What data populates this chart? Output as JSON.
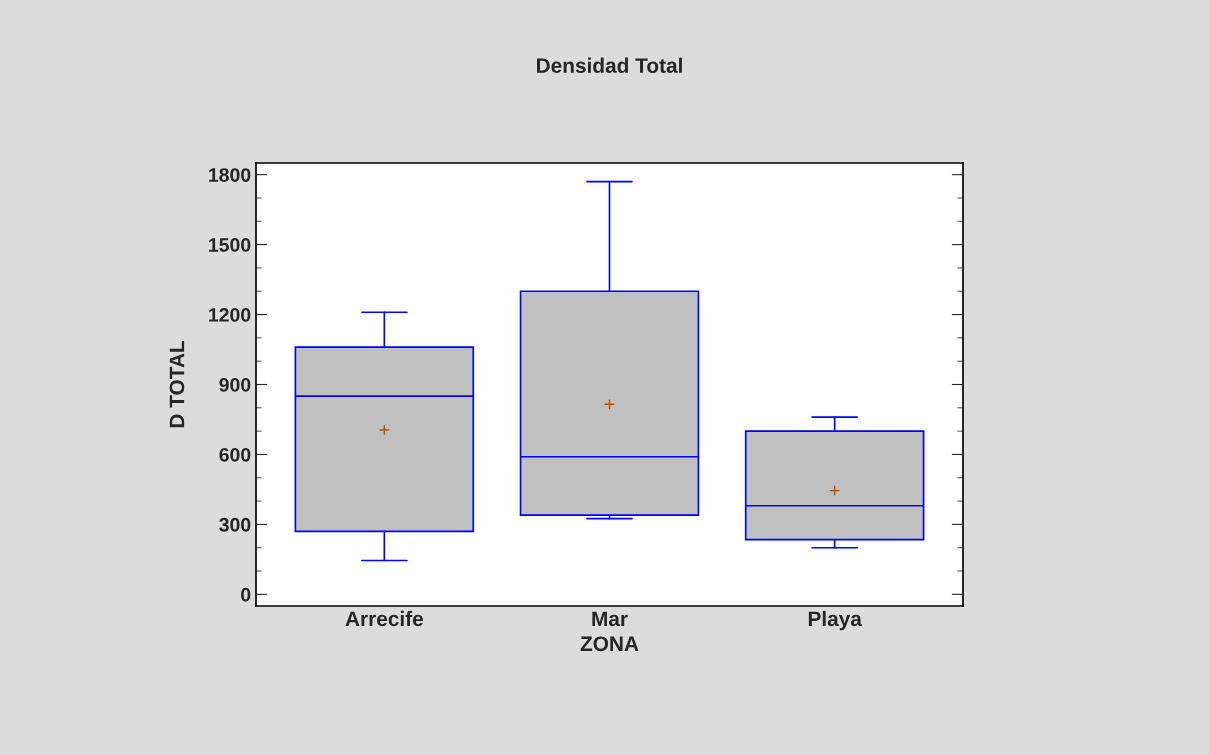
{
  "chart_data": {
    "type": "box",
    "title": "Densidad Total",
    "xlabel": "ZONA",
    "ylabel": "D TOTAL",
    "categories": [
      "Arrecife",
      "Mar",
      "Playa"
    ],
    "boxes": [
      {
        "low": 145,
        "q1": 270,
        "median": 850,
        "q3": 1060,
        "high": 1210,
        "mean": 705
      },
      {
        "low": 325,
        "q1": 340,
        "median": 590,
        "q3": 1300,
        "high": 1770,
        "mean": 815
      },
      {
        "low": 200,
        "q1": 235,
        "median": 380,
        "q3": 700,
        "high": 760,
        "mean": 445
      }
    ],
    "color": "#c0c0c0",
    "ylim": [
      -50,
      1850
    ],
    "yticks": [
      0,
      300,
      600,
      900,
      1200,
      1500,
      1800
    ],
    "grid": false,
    "legend": false
  }
}
